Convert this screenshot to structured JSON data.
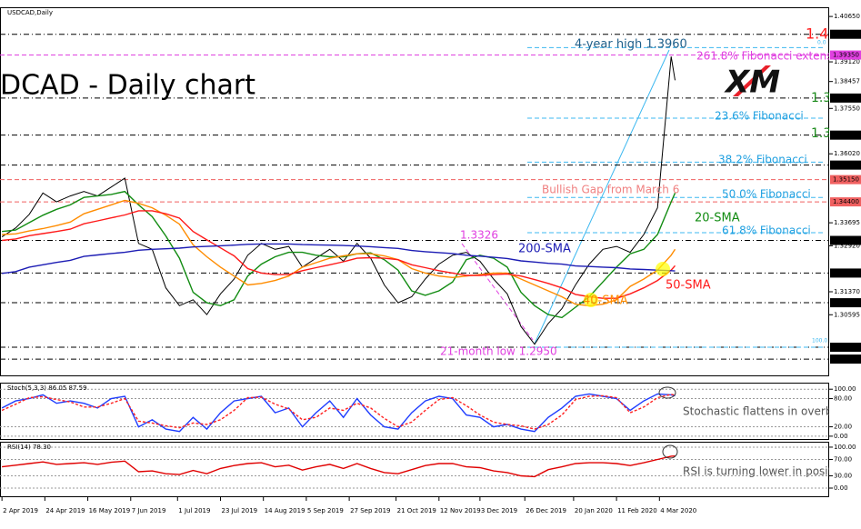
{
  "chart_data": [
    {
      "type": "line",
      "title": "USDCAD,Daily",
      "subtitle": "DCAD - Daily chart",
      "x": [
        "2019-04-02",
        "2019-04-09",
        "2019-04-16",
        "2019-04-23",
        "2019-04-30",
        "2019-05-07",
        "2019-05-14",
        "2019-05-21",
        "2019-05-28",
        "2019-06-04",
        "2019-06-11",
        "2019-06-18",
        "2019-06-25",
        "2019-07-02",
        "2019-07-09",
        "2019-07-16",
        "2019-07-23",
        "2019-07-30",
        "2019-08-06",
        "2019-08-13",
        "2019-08-20",
        "2019-08-27",
        "2019-09-03",
        "2019-09-10",
        "2019-09-17",
        "2019-09-24",
        "2019-10-01",
        "2019-10-08",
        "2019-10-15",
        "2019-10-22",
        "2019-10-29",
        "2019-11-05",
        "2019-11-12",
        "2019-11-19",
        "2019-11-26",
        "2019-12-03",
        "2019-12-10",
        "2019-12-17",
        "2019-12-24",
        "2019-12-31",
        "2020-01-07",
        "2020-01-14",
        "2020-01-21",
        "2020-01-28",
        "2020-02-04",
        "2020-02-11",
        "2020-02-18",
        "2020-02-25",
        "2020-03-03",
        "2020-03-10",
        "2020-03-12"
      ],
      "xlim": [
        "2019-04-01",
        "2020-05-30"
      ],
      "ylim": [
        1.2852,
        1.4096
      ],
      "yticks": [
        {
          "value": 1.4065,
          "label": "1.40650"
        },
        {
          "value": 1.3912,
          "label": "1.39120"
        },
        {
          "value": 1.38457,
          "label": "1.38457"
        },
        {
          "value": 1.3755,
          "label": "1.37550"
        },
        {
          "value": 1.3602,
          "label": "1.36020"
        },
        {
          "value": 1.33695,
          "label": "1.33695"
        },
        {
          "value": 1.3292,
          "label": "1.32920"
        },
        {
          "value": 1.3137,
          "label": "1.31370"
        },
        {
          "value": 1.30595,
          "label": "1.30595"
        }
      ],
      "levels": [
        {
          "value": 1.4005,
          "label": "1.40050",
          "color": "#000000"
        },
        {
          "value": 1.3935,
          "label": "1.39350",
          "color": "#e040e0"
        },
        {
          "value": 1.379,
          "label": "1.37900",
          "color": "#000000"
        },
        {
          "value": 1.3665,
          "label": "1.36650",
          "color": "#000000"
        },
        {
          "value": 1.3564,
          "label": "1.35640",
          "color": "#000000"
        },
        {
          "value": 1.3515,
          "label": "1.35150",
          "color": "#f06060"
        },
        {
          "value": 1.344,
          "label": "1.34400",
          "color": "#f06060"
        },
        {
          "value": 1.331,
          "label": "1.33100",
          "color": "#000000"
        },
        {
          "value": 1.32,
          "label": "1.32000",
          "color": "#000000"
        },
        {
          "value": 1.31,
          "label": "1.31000",
          "color": "#000000"
        },
        {
          "value": 1.295,
          "label": "1.29500",
          "color": "#000000"
        },
        {
          "value": 1.291,
          "label": "1.29100",
          "color": "#000000"
        }
      ],
      "fib_levels": [
        {
          "value": 1.396,
          "label": "0.0"
        },
        {
          "value": 1.3722,
          "label": "23.6% Fibonacci"
        },
        {
          "value": 1.3574,
          "label": "38.2% Fibonacci"
        },
        {
          "value": 1.3455,
          "label": "50.0% Fibonacci"
        },
        {
          "value": 1.3336,
          "label": "61.8% Fibonacci"
        },
        {
          "value": 1.295,
          "label": "100.0"
        }
      ],
      "series": [
        {
          "color": "#000000",
          "values": [
            1.3322,
            1.3352,
            1.3398,
            1.347,
            1.344,
            1.346,
            1.3475,
            1.346,
            1.349,
            1.352,
            1.33,
            1.328,
            1.315,
            1.309,
            1.311,
            1.306,
            1.313,
            1.318,
            1.326,
            1.33,
            1.328,
            1.329,
            1.322,
            1.325,
            1.328,
            1.324,
            1.33,
            1.325,
            1.316,
            1.31,
            1.312,
            1.318,
            1.323,
            1.326,
            1.327,
            1.324,
            1.318,
            1.313,
            1.302,
            1.296,
            1.303,
            1.308,
            1.316,
            1.323,
            1.328,
            1.329,
            1.327,
            1.333,
            1.342,
            1.393,
            1.385
          ]
        },
        {
          "name": "20-SMA",
          "color": "#128c12",
          "values": [
            1.334,
            1.3345,
            1.337,
            1.3395,
            1.3415,
            1.343,
            1.3455,
            1.346,
            1.3465,
            1.3475,
            1.343,
            1.339,
            1.3325,
            1.325,
            1.3135,
            1.31,
            1.309,
            1.311,
            1.319,
            1.323,
            1.3255,
            1.327,
            1.327,
            1.326,
            1.3255,
            1.3255,
            1.3265,
            1.3268,
            1.3245,
            1.321,
            1.314,
            1.3125,
            1.314,
            1.317,
            1.3245,
            1.326,
            1.325,
            1.322,
            1.3135,
            1.309,
            1.306,
            1.305,
            1.3085,
            1.312,
            1.317,
            1.322,
            1.3265,
            1.328,
            1.333,
            1.344,
            1.347
          ]
        },
        {
          "name": "40-SMA",
          "color": "#ff8c00",
          "values": [
            1.333,
            1.3332,
            1.3342,
            1.335,
            1.336,
            1.3372,
            1.34,
            1.3415,
            1.343,
            1.3445,
            1.3435,
            1.342,
            1.3395,
            1.3365,
            1.3295,
            1.3255,
            1.322,
            1.319,
            1.316,
            1.3165,
            1.3175,
            1.319,
            1.322,
            1.3235,
            1.325,
            1.3258,
            1.3265,
            1.3265,
            1.3258,
            1.3245,
            1.3215,
            1.32,
            1.319,
            1.3185,
            1.319,
            1.3195,
            1.32,
            1.32,
            1.318,
            1.316,
            1.314,
            1.312,
            1.3095,
            1.309,
            1.3095,
            1.311,
            1.3155,
            1.318,
            1.321,
            1.326,
            1.328
          ]
        },
        {
          "name": "50-SMA",
          "color": "#ff1a1a",
          "values": [
            1.331,
            1.3315,
            1.3326,
            1.3333,
            1.334,
            1.3348,
            1.3366,
            1.3376,
            1.3386,
            1.3396,
            1.341,
            1.341,
            1.34,
            1.3385,
            1.334,
            1.3312,
            1.3285,
            1.3258,
            1.3215,
            1.32,
            1.3195,
            1.3195,
            1.3208,
            1.3218,
            1.3228,
            1.3238,
            1.325,
            1.3252,
            1.325,
            1.3245,
            1.3228,
            1.3218,
            1.3208,
            1.32,
            1.3192,
            1.3192,
            1.3195,
            1.3197,
            1.319,
            1.3178,
            1.3165,
            1.315,
            1.3128,
            1.312,
            1.3115,
            1.3115,
            1.313,
            1.315,
            1.3175,
            1.321,
            1.3225
          ]
        },
        {
          "name": "200-SMA",
          "color": "#1c1cb4",
          "values": [
            1.3199,
            1.3205,
            1.322,
            1.3228,
            1.3236,
            1.3243,
            1.3256,
            1.3261,
            1.3266,
            1.327,
            1.3277,
            1.328,
            1.3282,
            1.3284,
            1.3288,
            1.329,
            1.3292,
            1.3294,
            1.3297,
            1.3298,
            1.3298,
            1.3298,
            1.3296,
            1.3295,
            1.3294,
            1.3293,
            1.3291,
            1.3289,
            1.3286,
            1.3283,
            1.3276,
            1.3272,
            1.3269,
            1.3266,
            1.326,
            1.3257,
            1.3253,
            1.3249,
            1.3241,
            1.3237,
            1.3233,
            1.323,
            1.3224,
            1.3222,
            1.322,
            1.3218,
            1.3214,
            1.3212,
            1.321,
            1.3208,
            1.3207
          ]
        }
      ],
      "annotations": [
        "4-year high 1.3960",
        "261.8% Fibonacci extension",
        "1.40",
        "1.3",
        "1.3",
        "Bullish Gap from March 6",
        "1.3326",
        "21-month low 1.2950",
        "XM"
      ]
    },
    {
      "type": "line",
      "title": "Stoch(5,3,3) 86.05 87.59",
      "grid": true,
      "x": [
        "2019-04-02",
        "2019-04-09",
        "2019-04-16",
        "2019-04-23",
        "2019-04-30",
        "2019-05-07",
        "2019-05-14",
        "2019-05-21",
        "2019-05-28",
        "2019-06-04",
        "2019-06-11",
        "2019-06-18",
        "2019-06-25",
        "2019-07-02",
        "2019-07-09",
        "2019-07-16",
        "2019-07-23",
        "2019-07-30",
        "2019-08-06",
        "2019-08-13",
        "2019-08-20",
        "2019-08-27",
        "2019-09-03",
        "2019-09-10",
        "2019-09-17",
        "2019-09-24",
        "2019-10-01",
        "2019-10-08",
        "2019-10-15",
        "2019-10-22",
        "2019-10-29",
        "2019-11-05",
        "2019-11-12",
        "2019-11-19",
        "2019-11-26",
        "2019-12-03",
        "2019-12-10",
        "2019-12-17",
        "2019-12-24",
        "2019-12-31",
        "2020-01-07",
        "2020-01-14",
        "2020-01-21",
        "2020-01-28",
        "2020-02-04",
        "2020-02-11",
        "2020-02-18",
        "2020-02-25",
        "2020-03-03",
        "2020-03-10",
        "2020-03-12"
      ],
      "xlim": [
        "2019-04-01",
        "2020-05-30"
      ],
      "ylim": [
        -6,
        112
      ],
      "yticks": [
        {
          "value": 100,
          "label": "100.00"
        },
        {
          "value": 80,
          "label": "80.00"
        },
        {
          "value": 20,
          "label": "20.00"
        },
        {
          "value": 0,
          "label": "0.00"
        }
      ],
      "series": [
        {
          "color": "#1e3cff",
          "values": [
            60,
            75,
            80,
            88,
            70,
            75,
            70,
            60,
            80,
            85,
            20,
            35,
            15,
            10,
            40,
            15,
            50,
            75,
            80,
            85,
            50,
            60,
            20,
            50,
            75,
            40,
            80,
            45,
            20,
            15,
            50,
            75,
            85,
            80,
            45,
            40,
            20,
            25,
            15,
            10,
            40,
            60,
            85,
            90,
            85,
            80,
            55,
            75,
            90,
            88,
            86.05
          ]
        },
        {
          "color": "#ff2020",
          "dash": true,
          "values": [
            55,
            68,
            82,
            84,
            78,
            73,
            62,
            62,
            70,
            80,
            32,
            28,
            22,
            18,
            28,
            25,
            35,
            55,
            82,
            83,
            68,
            58,
            35,
            40,
            60,
            55,
            70,
            60,
            38,
            20,
            30,
            55,
            78,
            82,
            65,
            45,
            30,
            25,
            22,
            15,
            25,
            45,
            78,
            85,
            86,
            82,
            50,
            62,
            82,
            89,
            87.59
          ]
        }
      ],
      "annotations": [
        "Stochastic flattens in overbough"
      ]
    },
    {
      "type": "line",
      "title": "RSI(14) 78.30",
      "grid": true,
      "x": [
        "2019-04-02",
        "2019-04-09",
        "2019-04-16",
        "2019-04-23",
        "2019-04-30",
        "2019-05-07",
        "2019-05-14",
        "2019-05-21",
        "2019-05-28",
        "2019-06-04",
        "2019-06-11",
        "2019-06-18",
        "2019-06-25",
        "2019-07-02",
        "2019-07-09",
        "2019-07-16",
        "2019-07-23",
        "2019-07-30",
        "2019-08-06",
        "2019-08-13",
        "2019-08-20",
        "2019-08-27",
        "2019-09-03",
        "2019-09-10",
        "2019-09-17",
        "2019-09-24",
        "2019-10-01",
        "2019-10-08",
        "2019-10-15",
        "2019-10-22",
        "2019-10-29",
        "2019-11-05",
        "2019-11-12",
        "2019-11-19",
        "2019-11-26",
        "2019-12-03",
        "2019-12-10",
        "2019-12-17",
        "2019-12-24",
        "2019-12-31",
        "2020-01-07",
        "2020-01-14",
        "2020-01-21",
        "2020-01-28",
        "2020-02-04",
        "2020-02-11",
        "2020-02-18",
        "2020-02-25",
        "2020-03-03",
        "2020-03-10",
        "2020-03-12"
      ],
      "xlim": [
        "2019-04-01",
        "2020-05-30"
      ],
      "ylim": [
        -20,
        111
      ],
      "yticks": [
        {
          "value": 100,
          "label": "100.00"
        },
        {
          "value": 70,
          "label": "70.00"
        },
        {
          "value": 30,
          "label": "30.00"
        },
        {
          "value": 0,
          "label": "0.00"
        }
      ],
      "xticks": [
        {
          "value": "2019-04-02",
          "label": "2 Apr 2019"
        },
        {
          "value": "2019-04-24",
          "label": "24 Apr 2019"
        },
        {
          "value": "2019-05-16",
          "label": "16 May 2019"
        },
        {
          "value": "2019-06-07",
          "label": "7 Jun 2019"
        },
        {
          "value": "2019-07-01",
          "label": "1 Jul 2019"
        },
        {
          "value": "2019-07-23",
          "label": "23 Jul 2019"
        },
        {
          "value": "2019-08-14",
          "label": "14 Aug 2019"
        },
        {
          "value": "2019-09-05",
          "label": "5 Sep 2019"
        },
        {
          "value": "2019-09-27",
          "label": "27 Sep 2019"
        },
        {
          "value": "2019-10-21",
          "label": "21 Oct 2019"
        },
        {
          "value": "2019-11-12",
          "label": "12 Nov 2019"
        },
        {
          "value": "2019-12-03",
          "label": "3 Dec 2019"
        },
        {
          "value": "2019-12-26",
          "label": "26 Dec 2019"
        },
        {
          "value": "2020-01-20",
          "label": "20 Jan 2020"
        },
        {
          "value": "2020-02-11",
          "label": "11 Feb 2020"
        },
        {
          "value": "2020-03-04",
          "label": "4 Mar 2020"
        }
      ],
      "series": [
        {
          "color": "#e00000",
          "values": [
            52,
            56,
            60,
            64,
            58,
            60,
            62,
            58,
            63,
            66,
            40,
            42,
            35,
            33,
            43,
            35,
            48,
            55,
            60,
            62,
            52,
            56,
            44,
            52,
            58,
            48,
            60,
            48,
            38,
            35,
            45,
            55,
            60,
            60,
            52,
            50,
            42,
            38,
            30,
            28,
            45,
            52,
            60,
            62,
            62,
            60,
            55,
            62,
            70,
            78,
            78.3
          ]
        }
      ],
      "annotations": [
        "RSI is turning lower in positive a"
      ]
    }
  ]
}
